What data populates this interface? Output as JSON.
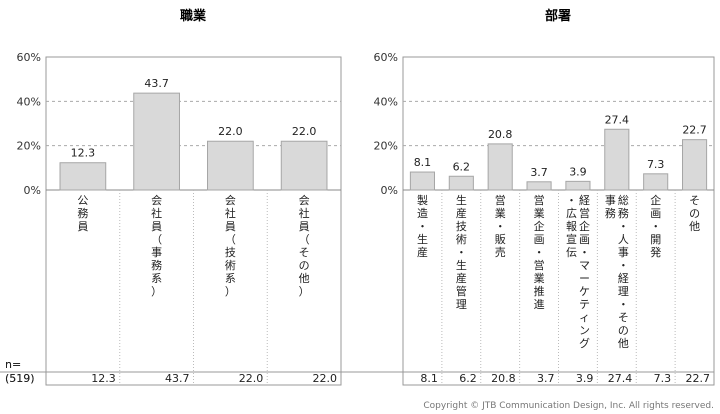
{
  "footer": {
    "copyright": "Copyright © JTB Communication Design, Inc. All rights reserved."
  },
  "chart_data": [
    {
      "type": "bar",
      "title": "職業",
      "categories": [
        "公務員",
        "会社員（事務系）",
        "会社員（技術系）",
        "会社員（その他）"
      ],
      "values": [
        12.3,
        43.7,
        22.0,
        22.0
      ],
      "ylim": [
        0,
        60
      ],
      "yticks": [
        "0%",
        "20%",
        "40%",
        "60%"
      ],
      "ytick_values": [
        0,
        20,
        40,
        60
      ],
      "n_header": "n=",
      "n_label": "(519)",
      "grid": "dashed at 20% and 40%",
      "bar_color": "#d9d9d9",
      "bar_edge": "#a6a6a6"
    },
    {
      "type": "bar",
      "title": "部署",
      "categories": [
        "製造・生産",
        "生産技術・生産管理",
        "営業・販売",
        "営業企画・営業推進",
        "経営企画・マーケティング・広報宣伝",
        "総務・人事・経理・その他事務",
        "企画・開発",
        "その他"
      ],
      "values": [
        8.1,
        6.2,
        20.8,
        3.7,
        3.9,
        27.4,
        7.3,
        22.7
      ],
      "ylim": [
        0,
        60
      ],
      "yticks": [
        "0%",
        "20%",
        "40%",
        "60%"
      ],
      "ytick_values": [
        0,
        20,
        40,
        60
      ],
      "n_header": "n=",
      "n_label": "(519)",
      "grid": "dashed at 20% and 40%",
      "bar_color": "#d9d9d9",
      "bar_edge": "#a6a6a6"
    }
  ]
}
